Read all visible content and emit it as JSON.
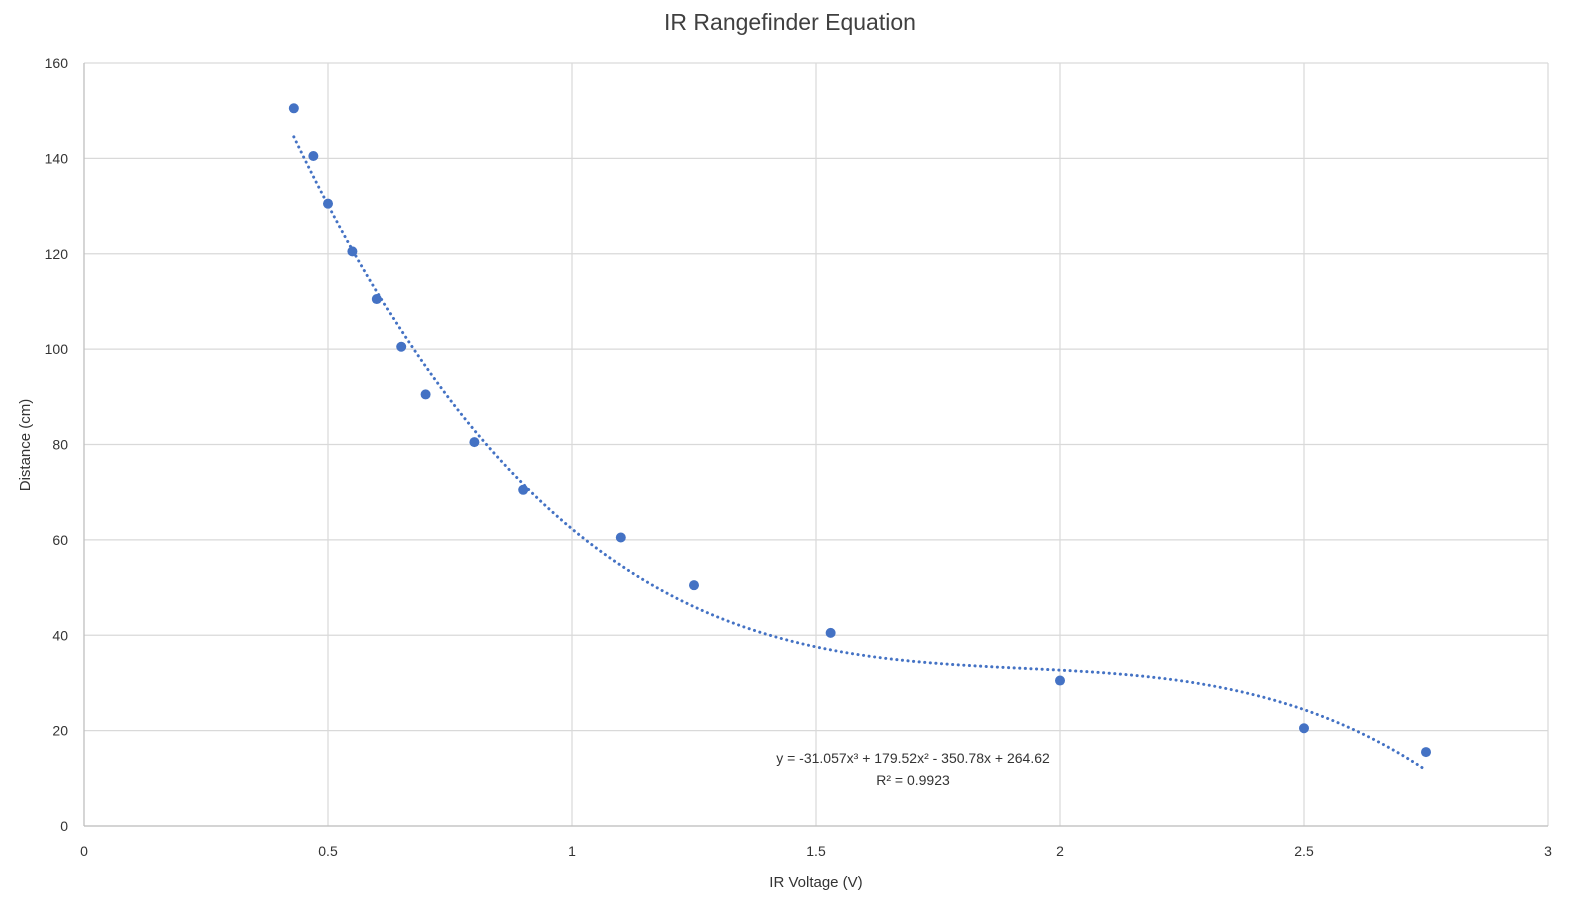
{
  "chart_data": {
    "type": "scatter",
    "title": "IR Rangefinder Equation",
    "xlabel": "IR Voltage (V)",
    "ylabel": "Distance (cm)",
    "xlim": [
      0,
      3
    ],
    "ylim": [
      0,
      160
    ],
    "xticks": [
      0,
      0.5,
      1,
      1.5,
      2,
      2.5,
      3
    ],
    "yticks": [
      0,
      20,
      40,
      60,
      80,
      100,
      120,
      140,
      160
    ],
    "xtick_labels": [
      "0",
      "0.5",
      "1",
      "1.5",
      "2",
      "2.5",
      "3"
    ],
    "ytick_labels": [
      "0",
      "20",
      "40",
      "60",
      "80",
      "100",
      "120",
      "140",
      "160"
    ],
    "grid": true,
    "legend": "none",
    "series": [
      {
        "x": [
          0.43,
          0.47,
          0.5,
          0.55,
          0.6,
          0.65,
          0.7,
          0.8,
          0.9,
          1.1,
          1.25,
          1.53,
          2.0,
          2.5,
          2.75
        ],
        "y": [
          150.5,
          140.5,
          130.5,
          120.5,
          110.5,
          100.5,
          90.5,
          80.5,
          70.5,
          60.5,
          50.5,
          40.5,
          30.5,
          20.5,
          15.5
        ],
        "color": "#4472C4"
      }
    ],
    "trendline": {
      "type": "polynomial",
      "order": 3,
      "coefficients": [
        -31.057,
        179.52,
        -350.78,
        264.62
      ],
      "x_range": [
        0.43,
        2.75
      ],
      "style": "dotted",
      "color": "#4472C4"
    },
    "annotation": {
      "equation": "y = -31.057x³ + 179.52x² - 350.78x + 264.62",
      "r_squared": "R² = 0.9923"
    }
  }
}
